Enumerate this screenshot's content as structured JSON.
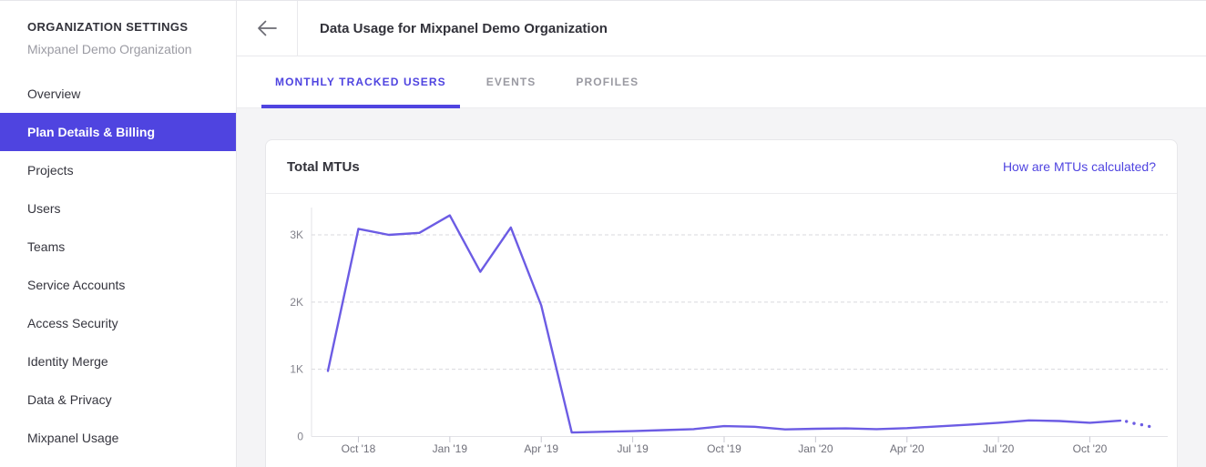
{
  "sidebar": {
    "header": "ORGANIZATION SETTINGS",
    "subtitle": "Mixpanel Demo Organization",
    "items": [
      {
        "label": "Overview",
        "selected": false
      },
      {
        "label": "Plan Details & Billing",
        "selected": true
      },
      {
        "label": "Projects",
        "selected": false
      },
      {
        "label": "Users",
        "selected": false
      },
      {
        "label": "Teams",
        "selected": false
      },
      {
        "label": "Service Accounts",
        "selected": false
      },
      {
        "label": "Access Security",
        "selected": false
      },
      {
        "label": "Identity Merge",
        "selected": false
      },
      {
        "label": "Data & Privacy",
        "selected": false
      },
      {
        "label": "Mixpanel Usage",
        "selected": false
      }
    ]
  },
  "header": {
    "title": "Data Usage for Mixpanel Demo Organization",
    "back_icon": "left-arrow-icon"
  },
  "tabs": [
    {
      "label": "MONTHLY TRACKED USERS",
      "active": true
    },
    {
      "label": "EVENTS",
      "active": false
    },
    {
      "label": "PROFILES",
      "active": false
    }
  ],
  "card": {
    "title": "Total MTUs",
    "link": "How are MTUs calculated?"
  },
  "colors": {
    "accent": "#4f44e0",
    "chart_line": "#6c5ce4",
    "content_bg": "#f4f4f6",
    "border": "#e7e7ea",
    "text_dark": "#32323a",
    "text_gray": "#9a9aa2",
    "axis_label": "#75757f",
    "gridline": "#d9d9dd"
  },
  "chart_data": {
    "type": "line",
    "title": "Total MTUs",
    "x": [
      "Sep '18",
      "Oct '18",
      "Nov '18",
      "Dec '18",
      "Jan '19",
      "Feb '19",
      "Mar '19",
      "Apr '19",
      "May '19",
      "Jun '19",
      "Jul '19",
      "Aug '19",
      "Sep '19",
      "Oct '19",
      "Nov '19",
      "Dec '19",
      "Jan '20",
      "Feb '20",
      "Mar '20",
      "Apr '20",
      "May '20",
      "Jun '20",
      "Jul '20",
      "Aug '20",
      "Sep '20",
      "Oct '20",
      "Nov '20"
    ],
    "series": [
      {
        "name": "Total MTUs",
        "values": [
          975,
          3090,
          3000,
          3030,
          3290,
          2450,
          3110,
          1950,
          60,
          70,
          80,
          95,
          110,
          155,
          145,
          105,
          115,
          120,
          110,
          125,
          150,
          175,
          205,
          240,
          230,
          205,
          235
        ]
      }
    ],
    "projection": {
      "style": "dotted",
      "x_positions": [
        26.2,
        26.45,
        26.7,
        26.95
      ],
      "values": [
        225,
        195,
        175,
        150
      ]
    },
    "x_tick_indices": [
      1,
      4,
      7,
      10,
      13,
      16,
      19,
      22,
      25
    ],
    "x_tick_labels": [
      "Oct '18",
      "Jan '19",
      "Apr '19",
      "Jul '19",
      "Oct '19",
      "Jan '20",
      "Apr '20",
      "Jul '20",
      "Oct '20"
    ],
    "y_ticks": [
      {
        "value": 0,
        "label": "0"
      },
      {
        "value": 1000,
        "label": "1K"
      },
      {
        "value": 2000,
        "label": "2K"
      },
      {
        "value": 3000,
        "label": "3K"
      }
    ],
    "ylim": [
      0,
      3380
    ],
    "grid": "dashed-horizontal",
    "legend": "none",
    "line_color": "#6c5ce4"
  }
}
